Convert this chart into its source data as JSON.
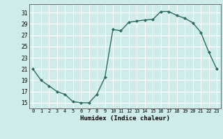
{
  "x": [
    0,
    1,
    2,
    3,
    4,
    5,
    6,
    7,
    8,
    9,
    10,
    11,
    12,
    13,
    14,
    15,
    16,
    17,
    18,
    19,
    20,
    21,
    22,
    23
  ],
  "y": [
    21,
    19,
    18,
    17,
    16.5,
    15.2,
    15.0,
    15.0,
    16.5,
    19.5,
    28,
    27.8,
    29.3,
    29.5,
    29.7,
    29.8,
    31.2,
    31.2,
    30.5,
    30.0,
    29.2,
    27.5,
    24.0,
    21.0
  ],
  "line_color": "#2d6b5e",
  "marker": "D",
  "marker_size": 2.0,
  "bg_color": "#ceecea",
  "grid_color": "#ffffff",
  "xlabel": "Humidex (Indice chaleur)",
  "ylabel_ticks": [
    15,
    17,
    19,
    21,
    23,
    25,
    27,
    29,
    31
  ],
  "xtick_labels": [
    "0",
    "1",
    "2",
    "3",
    "4",
    "5",
    "6",
    "7",
    "8",
    "9",
    "10",
    "11",
    "12",
    "13",
    "14",
    "15",
    "16",
    "17",
    "18",
    "19",
    "20",
    "21",
    "22",
    "23"
  ],
  "ylim": [
    14,
    32.5
  ],
  "xlim": [
    -0.5,
    23.5
  ]
}
